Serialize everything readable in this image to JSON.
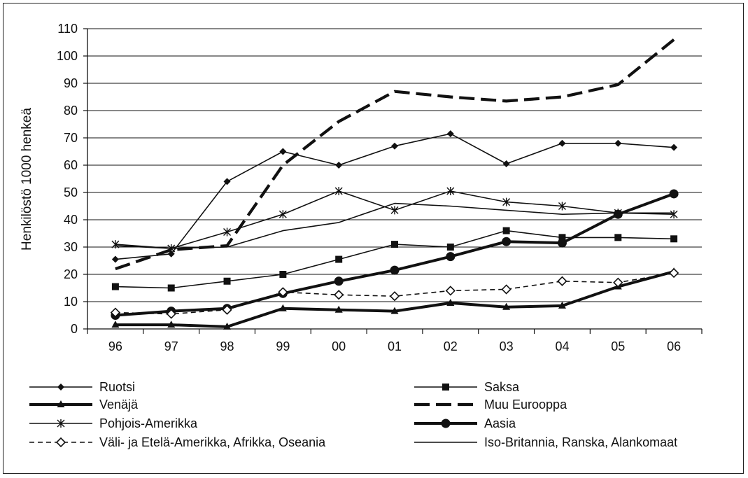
{
  "chart_data": {
    "type": "line",
    "title": "",
    "xlabel": "",
    "ylabel": "Henkilöstö 1000 henkeä",
    "categories": [
      "96",
      "97",
      "98",
      "99",
      "00",
      "01",
      "02",
      "03",
      "04",
      "05",
      "06"
    ],
    "ylim": [
      0,
      110
    ],
    "yticks": [
      0,
      10,
      20,
      30,
      40,
      50,
      60,
      70,
      80,
      90,
      100,
      110
    ],
    "grid": "horizontal",
    "legend_position": "bottom",
    "series": [
      {
        "name": "Ruotsi",
        "style": "thin-solid",
        "marker": "diamond-filled",
        "values": [
          25.5,
          27.5,
          54,
          65,
          60,
          67,
          71.5,
          60.5,
          68,
          68,
          66.5
        ]
      },
      {
        "name": "Saksa",
        "style": "thin-solid",
        "marker": "square-filled",
        "values": [
          15.5,
          15,
          17.5,
          20,
          25.5,
          31,
          30,
          36,
          33.5,
          33.5,
          33
        ]
      },
      {
        "name": "Venäjä",
        "style": "thick-solid",
        "marker": "triangle-filled",
        "values": [
          1.5,
          1.5,
          0.8,
          7.5,
          7,
          6.5,
          9.5,
          8,
          8.5,
          15.5,
          21
        ]
      },
      {
        "name": "Muu Eurooppa",
        "style": "thick-dashed",
        "marker": "none",
        "values": [
          22,
          29,
          30.5,
          60,
          76,
          87,
          85,
          83.5,
          85,
          89.5,
          106
        ]
      },
      {
        "name": "Pohjois-Amerikka",
        "style": "thin-solid",
        "marker": "asterisk",
        "values": [
          31,
          29.5,
          35.5,
          42,
          50.5,
          43.5,
          50.5,
          46.5,
          45,
          42.5,
          42
        ]
      },
      {
        "name": "Aasia",
        "style": "thick-solid",
        "marker": "circle-filled",
        "values": [
          5,
          6.5,
          7.5,
          13,
          17.5,
          21.5,
          26.5,
          32,
          31.5,
          42,
          49.5
        ]
      },
      {
        "name": "Väli- ja Etelä-Amerikka, Afrikka, Oseania",
        "style": "thin-dashed",
        "marker": "diamond-open",
        "values": [
          6,
          5.5,
          7,
          13.5,
          12.5,
          12,
          14,
          14.5,
          17.5,
          17,
          20.5
        ]
      },
      {
        "name": "Iso-Britannia, Ranska, Alankomaat",
        "style": "thin-solid",
        "marker": "none",
        "values": [
          30.5,
          29.5,
          30,
          36,
          39,
          46,
          45,
          43.5,
          42,
          42.5,
          42.5
        ]
      }
    ]
  }
}
